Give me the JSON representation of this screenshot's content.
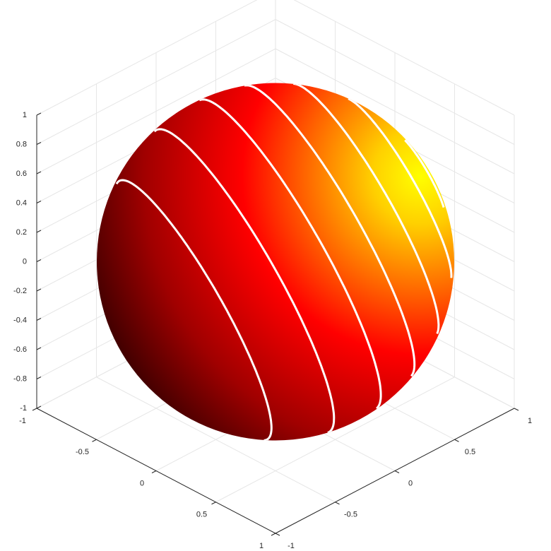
{
  "chart_data": {
    "type": "surface",
    "shape": "sphere",
    "colormap": "hot",
    "contours": true,
    "xlim": [
      -1,
      1
    ],
    "ylim": [
      -1,
      1
    ],
    "zlim": [
      -1,
      1
    ],
    "xticks": [
      -1,
      -0.5,
      0,
      0.5,
      1
    ],
    "yticks": [
      -1,
      -0.5,
      0,
      0.5,
      1
    ],
    "zticks": [
      -1,
      -0.8,
      -0.6,
      -0.4,
      -0.2,
      0,
      0.2,
      0.4,
      0.6,
      0.8,
      1
    ],
    "grid": true
  }
}
